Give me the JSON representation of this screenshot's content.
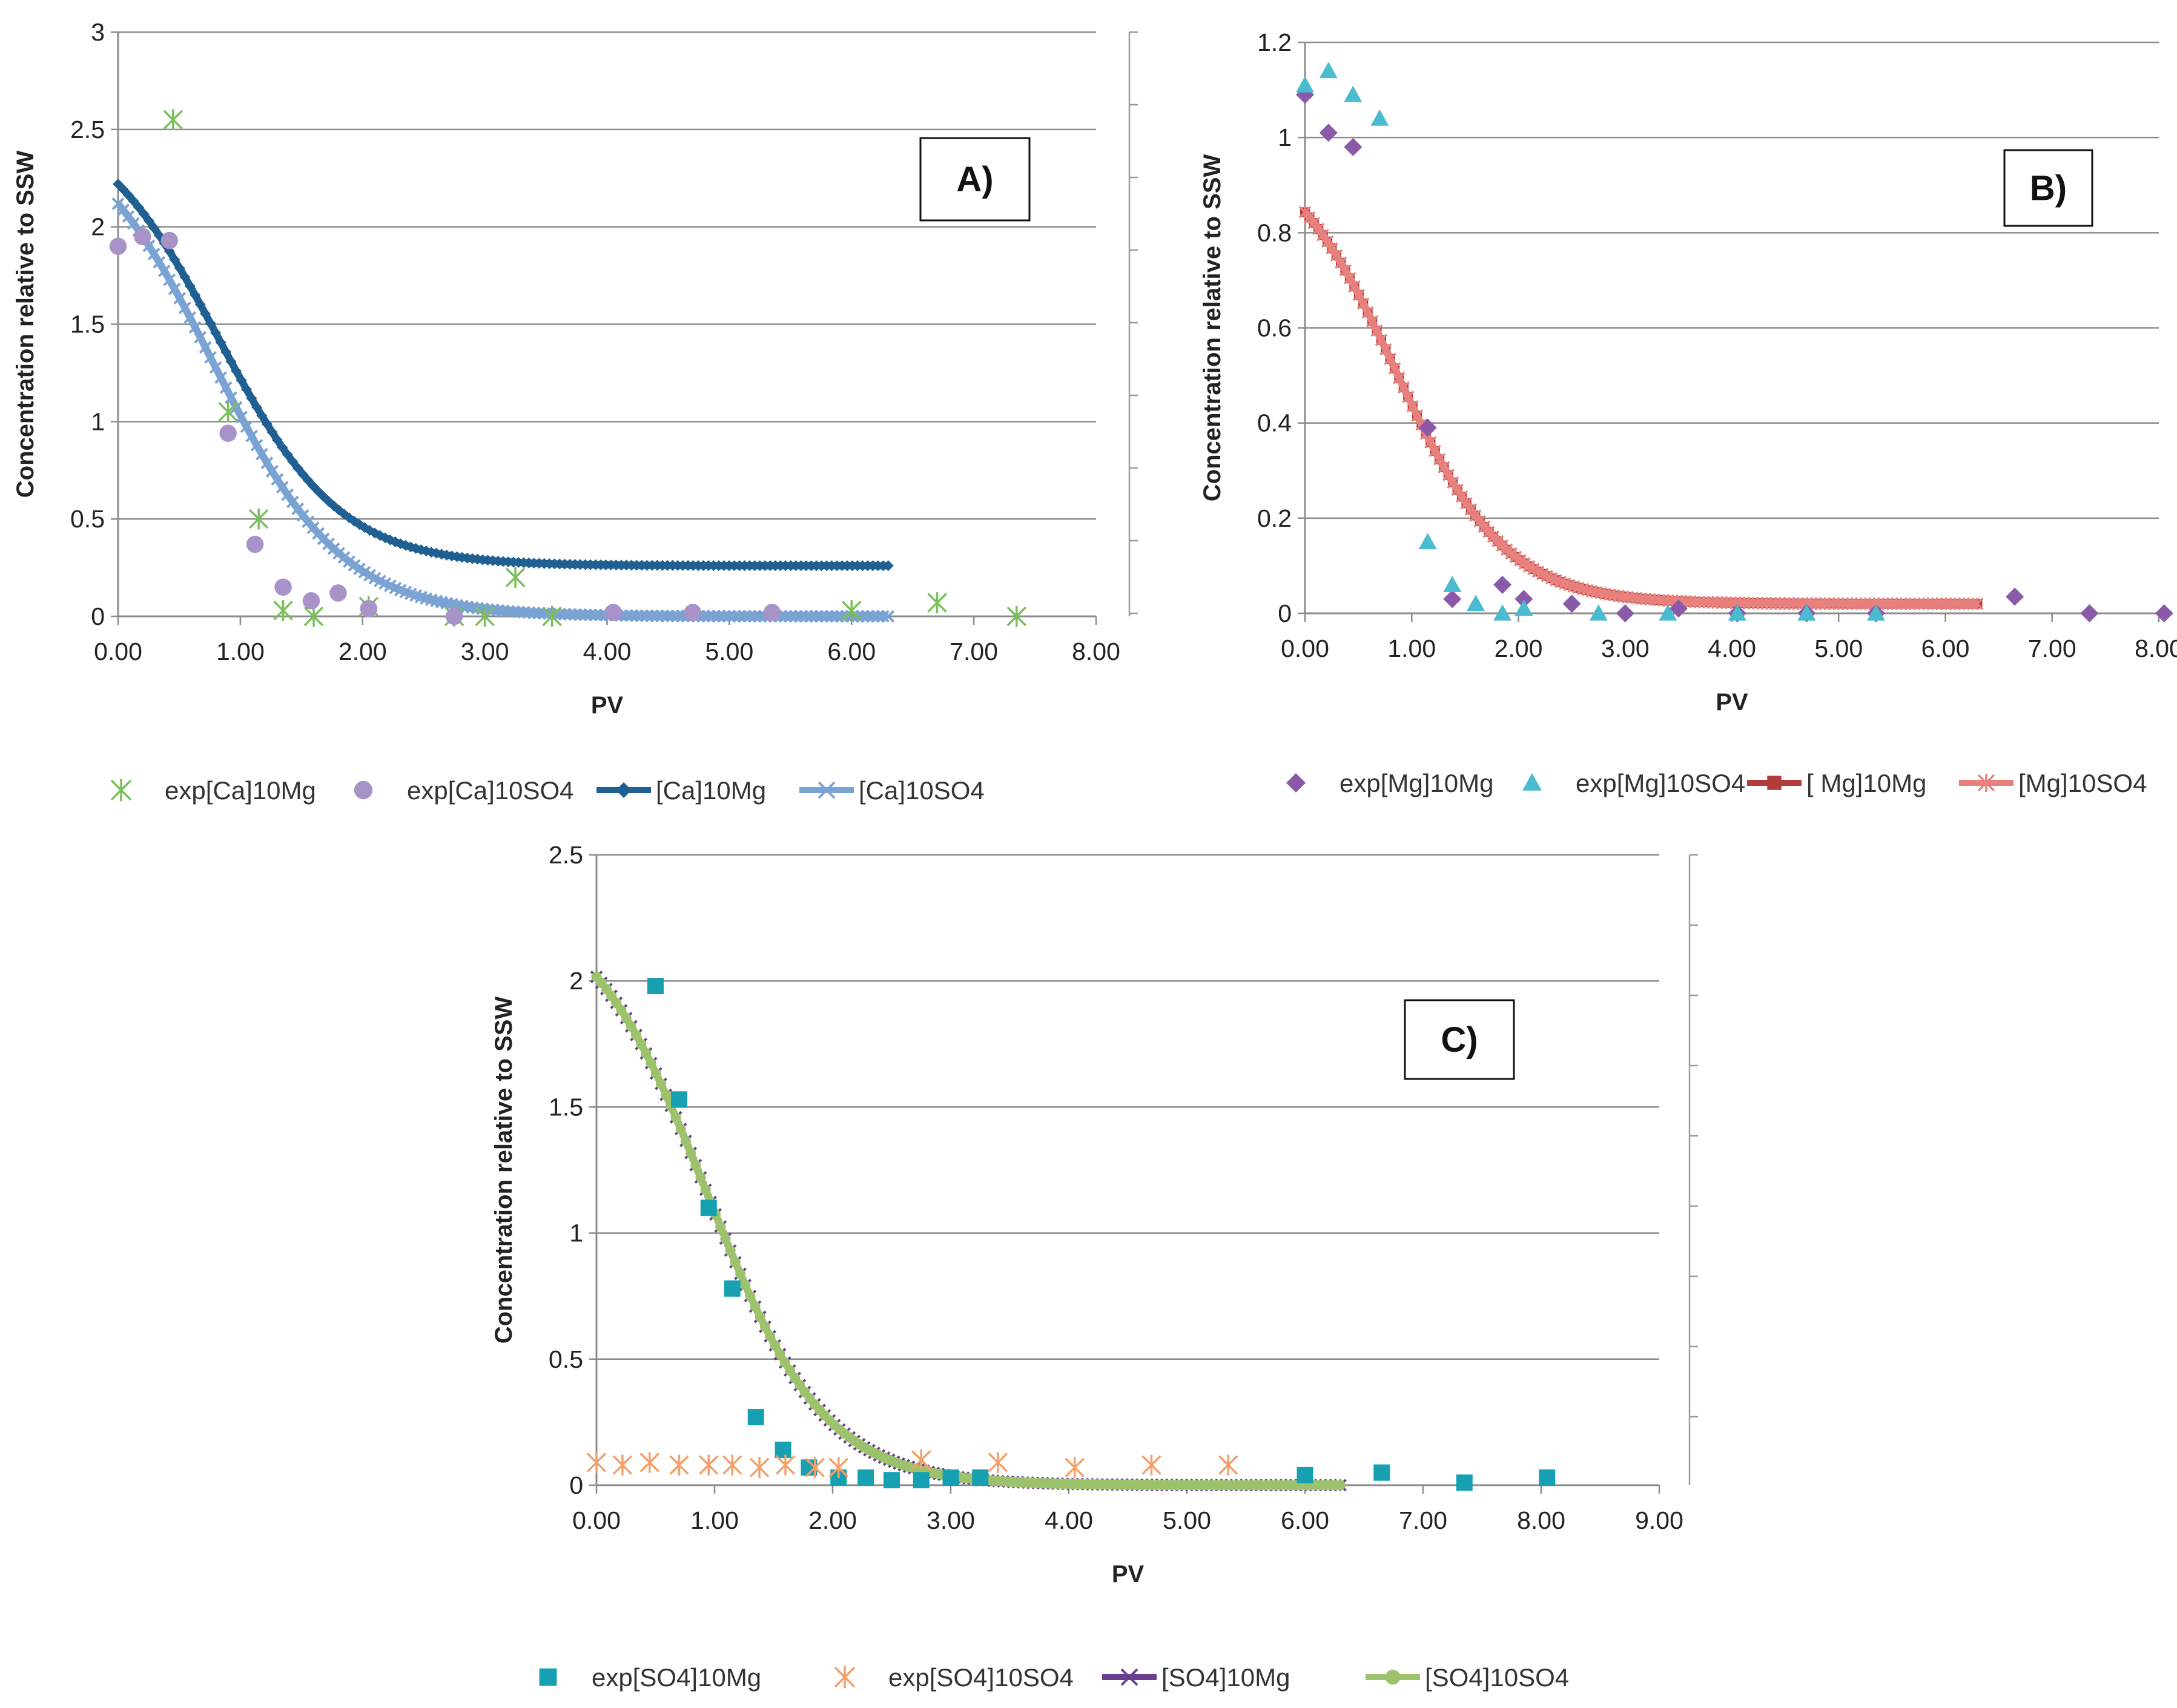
{
  "chart_data": [
    {
      "type": "scatter",
      "panel_label": "A)",
      "xlabel": "PV",
      "ylabel": "Concentration relative to SSW",
      "xlim": [
        0,
        8
      ],
      "ylim": [
        0,
        3
      ],
      "x_ticks": [
        "0.00",
        "1.00",
        "2.00",
        "3.00",
        "4.00",
        "5.00",
        "6.00",
        "7.00",
        "8.00"
      ],
      "y_ticks": [
        "0",
        "0.5",
        "1",
        "1.5",
        "2",
        "2.5",
        "3"
      ],
      "series": [
        {
          "name": "exp[Ca]10Mg",
          "kind": "points",
          "marker": "star",
          "color": "#79c05a",
          "x": [
            0.45,
            0.9,
            1.15,
            1.35,
            1.6,
            2.05,
            2.75,
            3.0,
            3.25,
            3.55,
            6.0,
            6.7,
            7.35
          ],
          "y": [
            2.55,
            1.05,
            0.5,
            0.03,
            0.0,
            0.05,
            0.0,
            0.0,
            0.2,
            0.0,
            0.03,
            0.07,
            0.0
          ]
        },
        {
          "name": "exp[Ca]10SO4",
          "kind": "points",
          "marker": "circle",
          "color": "#a893c8",
          "x": [
            0.0,
            0.2,
            0.42,
            0.9,
            1.12,
            1.35,
            1.58,
            1.8,
            2.05,
            2.75,
            4.05,
            4.7,
            5.35
          ],
          "y": [
            1.9,
            1.95,
            1.93,
            0.94,
            0.37,
            0.15,
            0.08,
            0.12,
            0.04,
            0.0,
            0.02,
            0.02,
            0.02
          ]
        },
        {
          "name": "[Ca]10Mg",
          "kind": "model",
          "marker": "diamond",
          "color": "#1f5f91",
          "x0": 0.0,
          "x1": 6.3,
          "start": 2.6,
          "end": 0.26,
          "x50": 0.82,
          "k": 2.0
        },
        {
          "name": "[Ca]10SO4",
          "kind": "model",
          "marker": "x",
          "color": "#7aa3d3",
          "x0": 0.0,
          "x1": 6.3,
          "start": 2.6,
          "end": 0.0,
          "x50": 0.78,
          "k": 1.9
        }
      ]
    },
    {
      "type": "scatter",
      "panel_label": "B)",
      "xlabel": "PV",
      "ylabel": "Concentration relative to SSW",
      "xlim": [
        0,
        8
      ],
      "ylim": [
        0,
        1.2
      ],
      "x_ticks": [
        "0.00",
        "1.00",
        "2.00",
        "3.00",
        "4.00",
        "5.00",
        "6.00",
        "7.00",
        "8.00"
      ],
      "y_ticks": [
        "0",
        "0.2",
        "0.4",
        "0.6",
        "0.8",
        "1",
        "1.2"
      ],
      "series": [
        {
          "name": "exp[Mg]10Mg",
          "kind": "points",
          "marker": "diamond",
          "color": "#8a5aa8",
          "x": [
            0.0,
            0.22,
            0.45,
            1.15,
            1.38,
            1.85,
            2.05,
            2.5,
            3.0,
            3.5,
            4.05,
            4.7,
            5.35,
            6.65,
            7.35,
            8.05
          ],
          "y": [
            1.09,
            1.01,
            0.98,
            0.39,
            0.03,
            0.06,
            0.03,
            0.02,
            0.0,
            0.01,
            0.0,
            0.0,
            0.0,
            0.035,
            0.0,
            0.0
          ]
        },
        {
          "name": "exp[Mg]10SO4",
          "kind": "points",
          "marker": "triangle",
          "color": "#4bbcd0",
          "x": [
            0.0,
            0.22,
            0.45,
            0.7,
            1.15,
            1.38,
            1.6,
            1.85,
            2.05,
            2.75,
            3.4,
            4.05,
            4.7,
            5.35
          ],
          "y": [
            1.11,
            1.14,
            1.09,
            1.04,
            0.15,
            0.06,
            0.02,
            0.0,
            0.01,
            0.0,
            0.0,
            0.0,
            0.0,
            0.0
          ]
        },
        {
          "name": "[ Mg]10Mg",
          "kind": "model",
          "marker": "square",
          "color": "#b23c3a",
          "x0": 0.0,
          "x1": 6.3,
          "start": 1.0,
          "end": 0.02,
          "x50": 0.85,
          "k": 1.95
        },
        {
          "name": "[Mg]10SO4",
          "kind": "model",
          "marker": "star",
          "color": "#e8807e",
          "x0": 0.0,
          "x1": 6.3,
          "start": 1.0,
          "end": 0.02,
          "x50": 0.85,
          "k": 1.95
        }
      ]
    },
    {
      "type": "scatter",
      "panel_label": "C)",
      "xlabel": "PV",
      "ylabel": "Concentration relative to SSW",
      "xlim": [
        0,
        9
      ],
      "ylim": [
        0,
        2.5
      ],
      "x_ticks": [
        "0.00",
        "1.00",
        "2.00",
        "3.00",
        "4.00",
        "5.00",
        "6.00",
        "7.00",
        "8.00",
        "9.00"
      ],
      "y_ticks": [
        "0",
        "0.5",
        "1",
        "1.5",
        "2",
        "2.5"
      ],
      "series": [
        {
          "name": "exp[SO4]10Mg",
          "kind": "points",
          "marker": "square",
          "color": "#16a0b2",
          "x": [
            0.5,
            0.7,
            0.95,
            1.15,
            1.35,
            1.58,
            1.8,
            2.05,
            2.28,
            2.5,
            2.75,
            3.0,
            3.25,
            6.0,
            6.65,
            7.35,
            8.05
          ],
          "y": [
            1.98,
            1.53,
            1.1,
            0.78,
            0.27,
            0.14,
            0.07,
            0.03,
            0.03,
            0.02,
            0.02,
            0.03,
            0.03,
            0.04,
            0.05,
            0.01,
            0.03
          ]
        },
        {
          "name": "exp[SO4]10SO4",
          "kind": "points",
          "marker": "star",
          "color": "#f4a06a",
          "x": [
            0.0,
            0.22,
            0.45,
            0.7,
            0.95,
            1.15,
            1.38,
            1.6,
            1.85,
            2.05,
            2.75,
            3.4,
            4.05,
            4.7,
            5.35
          ],
          "y": [
            0.09,
            0.08,
            0.09,
            0.08,
            0.08,
            0.08,
            0.07,
            0.08,
            0.07,
            0.07,
            0.1,
            0.09,
            0.07,
            0.08,
            0.08
          ]
        },
        {
          "name": "[SO4]10Mg",
          "kind": "model",
          "marker": "x",
          "color": "#6a3d8f",
          "x0": 0.0,
          "x1": 6.3,
          "start": 2.33,
          "end": 0.0,
          "x50": 0.93,
          "k": 2.0
        },
        {
          "name": "[SO4]10SO4",
          "kind": "model",
          "marker": "circle",
          "color": "#9cc36b",
          "x0": 0.0,
          "x1": 6.3,
          "start": 2.33,
          "end": 0.0,
          "x50": 0.93,
          "k": 2.0
        }
      ]
    }
  ]
}
